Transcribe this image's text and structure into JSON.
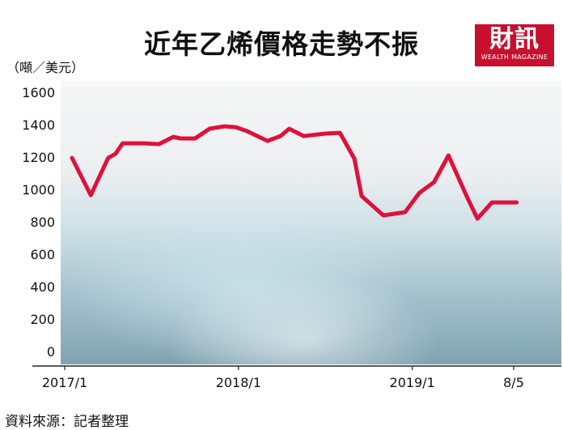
{
  "title": "近年乙烯價格走勢不振",
  "y_unit_label": "（噸／美元）",
  "logo": {
    "main": "財訊",
    "sub": "WEALTH MAGAZINE"
  },
  "source_label": "資料來源：記者整理",
  "colors": {
    "line": "#e0103a",
    "logo_bg": "#c8102e",
    "axis": "#222222"
  },
  "chart_data": {
    "type": "line",
    "title": "近年乙烯價格走勢不振",
    "ylabel": "（噸／美元）",
    "xlabel": "",
    "ylim": [
      0,
      1600
    ],
    "y_ticks": [
      0,
      200,
      400,
      600,
      800,
      1000,
      1200,
      1400,
      1600
    ],
    "xlim": [
      0,
      31
    ],
    "x_ticks": [
      {
        "x": 0,
        "label": "2017/1"
      },
      {
        "x": 12,
        "label": "2018/1"
      },
      {
        "x": 24,
        "label": "2019/1"
      },
      {
        "x": 31,
        "label": "8/5"
      }
    ],
    "grid": false,
    "series": [
      {
        "x": [
          0.5,
          1.8,
          3.0,
          3.5,
          4.0,
          5.5,
          6.5,
          7.5,
          8.0,
          9.0,
          10.0,
          11.0,
          11.8,
          12.6,
          14.0,
          14.9,
          15.5,
          16.5,
          17.5,
          18.0,
          19.0,
          20.0,
          20.5,
          21.5,
          22.0,
          23.5,
          24.5,
          25.5,
          26.5,
          27.8,
          28.5,
          29.5,
          30.5,
          31.2
        ],
        "y": [
          1195,
          965,
          1195,
          1220,
          1285,
          1285,
          1280,
          1325,
          1315,
          1315,
          1375,
          1390,
          1385,
          1360,
          1300,
          1330,
          1375,
          1330,
          1340,
          1345,
          1350,
          1190,
          960,
          880,
          840,
          860,
          980,
          1045,
          1210,
          950,
          820,
          920,
          920,
          920
        ]
      }
    ]
  }
}
